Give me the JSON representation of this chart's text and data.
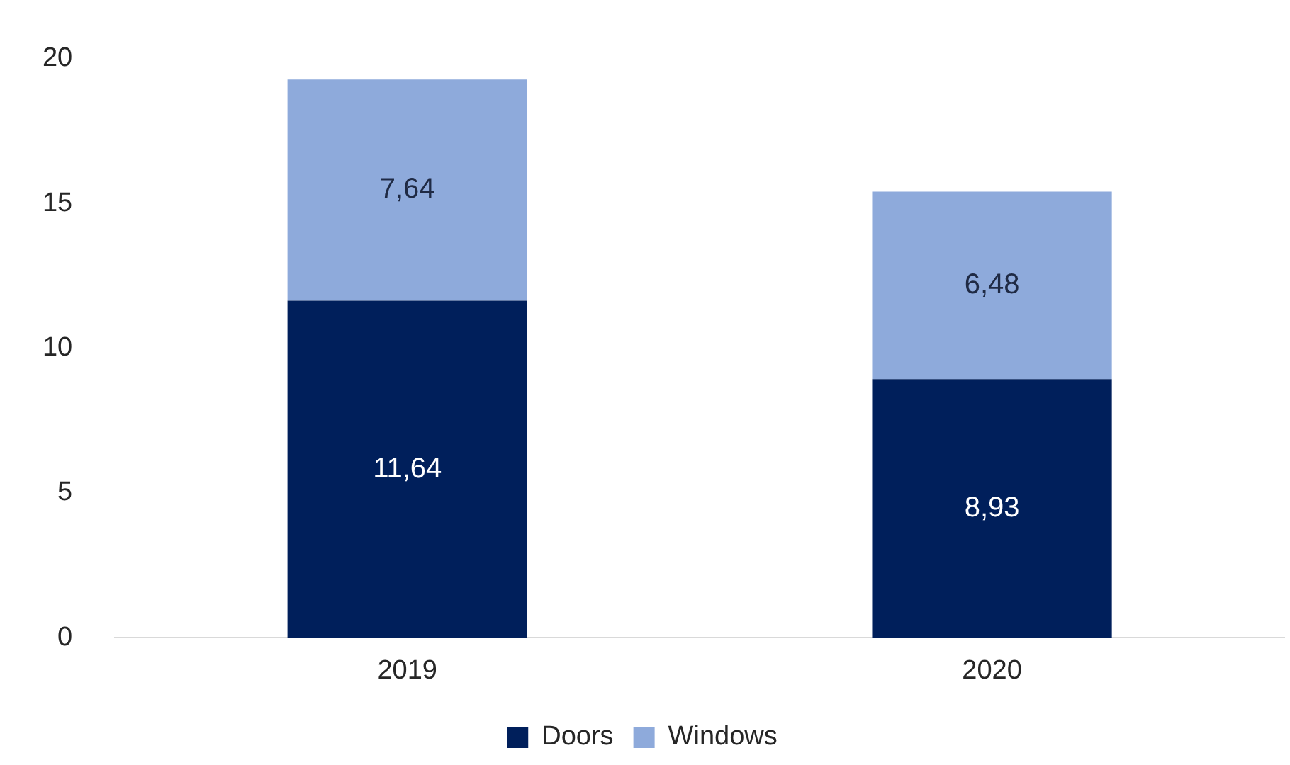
{
  "chart_data": {
    "type": "bar",
    "stacked": true,
    "categories": [
      "2019",
      "2020"
    ],
    "series": [
      {
        "name": "Doors",
        "color": "#001f5b",
        "values": [
          11.64,
          8.93
        ],
        "value_labels": [
          "11,64",
          "8,93"
        ]
      },
      {
        "name": "Windows",
        "color": "#8eaadb",
        "values": [
          7.64,
          6.48
        ],
        "value_labels": [
          "7,64",
          "6,48"
        ]
      }
    ],
    "ylim": [
      0,
      20
    ],
    "yticks": [
      0,
      5,
      10,
      15,
      20
    ],
    "grid": false,
    "legend": "bottom"
  }
}
